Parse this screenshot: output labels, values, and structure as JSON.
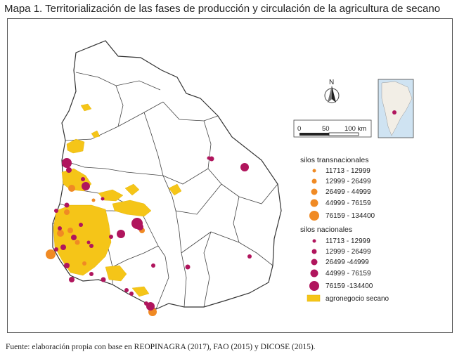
{
  "title": "Mapa 1. Territorialización de las fases de producción y circulación de la agricultura de secano",
  "source": "Fuente: elaboración propia con base en REOPINAGRA (2017), FAO (2015) y DICOSE (2015).",
  "north_arrow": {
    "label": "N",
    "icon": "north-arrow-icon"
  },
  "scale_bar": {
    "labels": [
      "0",
      "50",
      "100 km"
    ]
  },
  "legend": {
    "transnacional": {
      "title": "silos transnacionales",
      "color": "#f08a24",
      "items": [
        "11713 - 12999",
        "12999 - 26499",
        "26499 - 44999",
        "44999 - 76159",
        "76159 - 134400"
      ]
    },
    "nacional": {
      "title": "silos nacionales",
      "color": "#b0155d",
      "items": [
        "11713 - 12999",
        "12999 - 26499",
        "26499 -44999",
        "44999 - 76159",
        "76159 -134400"
      ]
    },
    "agro": {
      "label": "agronegocio secano",
      "color": "#f5c518"
    }
  },
  "colors": {
    "border": "#333333",
    "land": "#ffffff",
    "inset_land": "#f2eee6",
    "inset_sea": "#cfe3f2"
  }
}
